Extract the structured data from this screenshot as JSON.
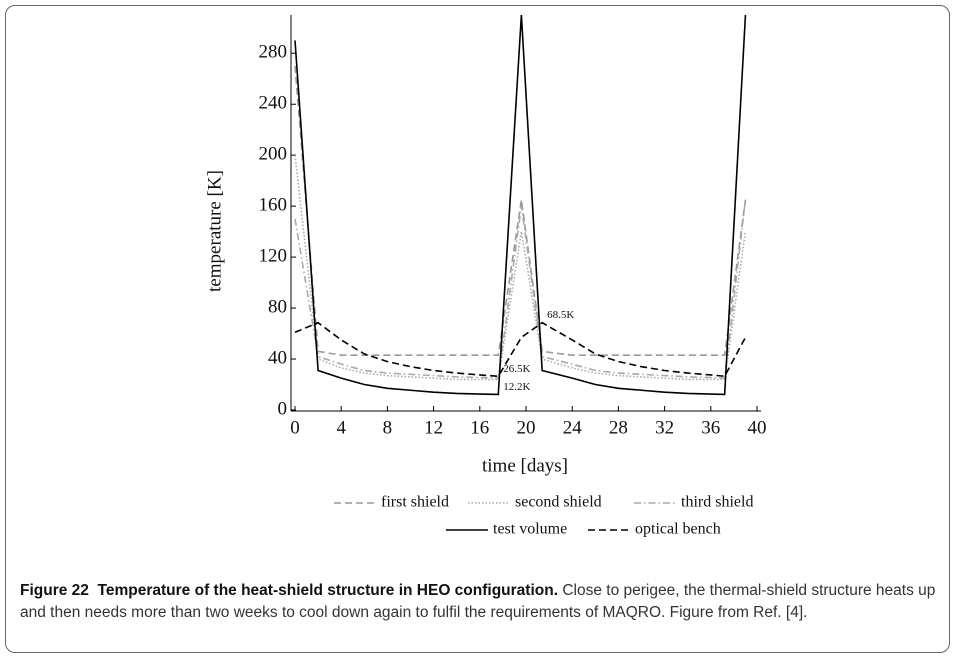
{
  "chart_data": {
    "type": "line",
    "xlabel": "time [days]",
    "ylabel": "temperature [K]",
    "x": [
      0,
      2,
      4,
      6,
      8,
      10,
      12,
      14,
      16,
      17.6,
      19.6,
      21.4,
      24,
      26,
      28,
      30,
      32,
      34,
      36,
      37.2,
      39
    ],
    "xlim": [
      0,
      40
    ],
    "xticks": [
      0,
      4,
      8,
      12,
      16,
      20,
      24,
      28,
      32,
      36,
      40
    ],
    "ylim": [
      0,
      310
    ],
    "yticks": [
      0,
      40,
      80,
      120,
      160,
      200,
      240,
      280
    ],
    "series": [
      {
        "name": "first shield",
        "color": "#999999",
        "style": "dashed",
        "values": [
          270,
          46,
          43,
          43,
          43,
          43,
          43,
          43,
          43,
          43,
          165,
          46,
          43,
          43,
          43,
          43,
          43,
          43,
          43,
          43,
          165
        ]
      },
      {
        "name": "second shield",
        "color": "#aaaaaa",
        "style": "dotted",
        "values": [
          200,
          40,
          33,
          29,
          27,
          26,
          25,
          24,
          24,
          24,
          140,
          40,
          33,
          29,
          27,
          26,
          25,
          24,
          24,
          24,
          140
        ]
      },
      {
        "name": "third shield",
        "color": "#aaaaaa",
        "style": "dashdot",
        "values": [
          150,
          42,
          36,
          31,
          29,
          28,
          27,
          26,
          25.5,
          25,
          160,
          42,
          36,
          31,
          29,
          28,
          27,
          26,
          25.5,
          25,
          165
        ]
      },
      {
        "name": "test volume",
        "color": "#000000",
        "style": "solid",
        "values": [
          290,
          31,
          25,
          20,
          17,
          15.5,
          14,
          13,
          12.5,
          12.2,
          310,
          31,
          25,
          20,
          17,
          15.5,
          14,
          13,
          12.5,
          12.2,
          310
        ]
      },
      {
        "name": "optical bench",
        "color": "#000000",
        "style": "dashed",
        "values": [
          61,
          68.5,
          55,
          44,
          38,
          34,
          31,
          29,
          27.5,
          26.5,
          57,
          68.5,
          55,
          44,
          38,
          34,
          31,
          29,
          27.5,
          26.5,
          57
        ]
      }
    ],
    "annotations": [
      {
        "text": "68.5K",
        "x": 21.4,
        "y": 68.5
      },
      {
        "text": "26.5K",
        "x": 17.6,
        "y": 26.5
      },
      {
        "text": "12.2K",
        "x": 17.6,
        "y": 12.2
      }
    ]
  },
  "caption": {
    "label": "Figure 22",
    "title": "Temperature of the heat-shield structure in HEO configuration.",
    "text": "Close to perigee, the thermal-shield structure heats up and then needs more than two weeks to cool down again to fulfil the requirements of MAQRO. Figure from Ref. [4]."
  }
}
